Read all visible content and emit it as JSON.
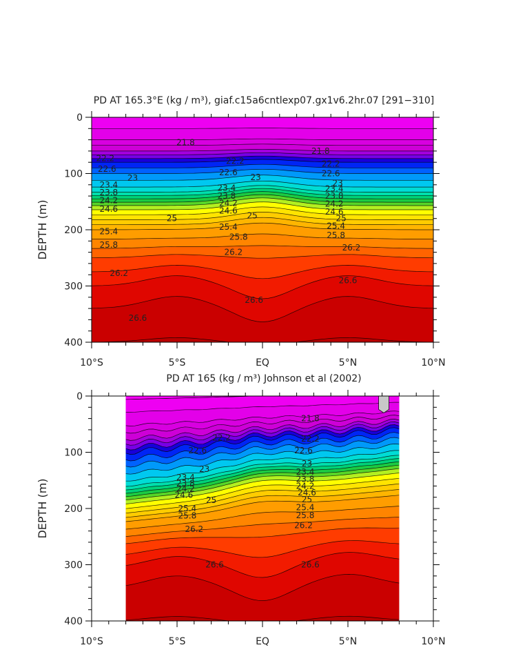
{
  "figure": {
    "background": "#ffffff"
  },
  "chart_data": [
    {
      "type": "heatmap",
      "subtype": "filled-contour",
      "title": "PD AT 165.3°E (kg / m³), giaf.c15a6cntlexp07.gx1v6.2hr.07 [291−310]",
      "xlabel": "",
      "ylabel": "DEPTH (m)",
      "xlim": [
        -10,
        10
      ],
      "ylim": [
        400,
        0
      ],
      "y_reversed": true,
      "grid": false,
      "x_ticks": [
        {
          "value": -10,
          "label": "10°S"
        },
        {
          "value": -5,
          "label": "5°S"
        },
        {
          "value": 0,
          "label": "EQ"
        },
        {
          "value": 5,
          "label": "5°N"
        },
        {
          "value": 10,
          "label": "10°N"
        }
      ],
      "y_ticks": [
        {
          "value": 0,
          "label": "0"
        },
        {
          "value": 100,
          "label": "100"
        },
        {
          "value": 200,
          "label": "200"
        },
        {
          "value": 300,
          "label": "300"
        },
        {
          "value": 400,
          "label": "400"
        }
      ],
      "data_extent": [
        -10,
        10
      ],
      "contour_interval": 0.2,
      "depth_profile": {
        "depths": [
          0,
          40,
          60,
          80,
          100,
          130,
          160,
          200,
          250,
          300,
          350,
          400
        ],
        "density": [
          21.2,
          21.6,
          22.0,
          22.6,
          23.0,
          23.5,
          24.5,
          25.4,
          26.0,
          26.4,
          26.65,
          26.8
        ]
      },
      "contour_labels": [
        {
          "x": -4.5,
          "y": 45,
          "label": "21.8"
        },
        {
          "x": 3.4,
          "y": 60,
          "label": "21.8"
        },
        {
          "x": -9.2,
          "y": 73,
          "label": "22.2"
        },
        {
          "x": -1.6,
          "y": 78,
          "label": "22.2"
        },
        {
          "x": 4.0,
          "y": 83,
          "label": "22.2"
        },
        {
          "x": -9.1,
          "y": 92,
          "label": "22.6"
        },
        {
          "x": -2.0,
          "y": 98,
          "label": "22.6"
        },
        {
          "x": 4.0,
          "y": 100,
          "label": "22.6"
        },
        {
          "x": -7.6,
          "y": 108,
          "label": "23"
        },
        {
          "x": -0.4,
          "y": 107,
          "label": "23"
        },
        {
          "x": 4.4,
          "y": 117,
          "label": "23"
        },
        {
          "x": -9.0,
          "y": 120,
          "label": "23.4"
        },
        {
          "x": -2.1,
          "y": 126,
          "label": "23.4"
        },
        {
          "x": 4.2,
          "y": 127,
          "label": "23.4"
        },
        {
          "x": -9.0,
          "y": 134,
          "label": "23.8"
        },
        {
          "x": -2.1,
          "y": 140,
          "label": "23.8"
        },
        {
          "x": 4.2,
          "y": 140,
          "label": "23.8"
        },
        {
          "x": -9.0,
          "y": 148,
          "label": "24.2"
        },
        {
          "x": -2.0,
          "y": 153,
          "label": "24.2"
        },
        {
          "x": 4.2,
          "y": 154,
          "label": "24.2"
        },
        {
          "x": -9.0,
          "y": 163,
          "label": "24.6"
        },
        {
          "x": -2.0,
          "y": 166,
          "label": "24.6"
        },
        {
          "x": 4.2,
          "y": 168,
          "label": "24.6"
        },
        {
          "x": -5.3,
          "y": 180,
          "label": "25"
        },
        {
          "x": -0.6,
          "y": 175,
          "label": "25"
        },
        {
          "x": 4.6,
          "y": 180,
          "label": "25"
        },
        {
          "x": -9.0,
          "y": 203,
          "label": "25.4"
        },
        {
          "x": -2.0,
          "y": 195,
          "label": "25.4"
        },
        {
          "x": 4.3,
          "y": 193,
          "label": "25.4"
        },
        {
          "x": -9.0,
          "y": 227,
          "label": "25.8"
        },
        {
          "x": -1.4,
          "y": 213,
          "label": "25.8"
        },
        {
          "x": 4.3,
          "y": 210,
          "label": "25.8"
        },
        {
          "x": -1.7,
          "y": 240,
          "label": "26.2"
        },
        {
          "x": 5.2,
          "y": 232,
          "label": "26.2"
        },
        {
          "x": -8.4,
          "y": 277,
          "label": "26.2"
        },
        {
          "x": -0.5,
          "y": 325,
          "label": "26.6"
        },
        {
          "x": 5.0,
          "y": 290,
          "label": "26.6"
        },
        {
          "x": -7.3,
          "y": 357,
          "label": "26.6"
        }
      ]
    },
    {
      "type": "heatmap",
      "subtype": "filled-contour",
      "title": "PD AT 165 (kg / m³) Johnson et al (2002)",
      "xlabel": "",
      "ylabel": "DEPTH (m)",
      "xlim": [
        -10,
        10
      ],
      "ylim": [
        400,
        0
      ],
      "y_reversed": true,
      "grid": false,
      "x_ticks": [
        {
          "value": -10,
          "label": "10°S"
        },
        {
          "value": -5,
          "label": "5°S"
        },
        {
          "value": 0,
          "label": "EQ"
        },
        {
          "value": 5,
          "label": "5°N"
        },
        {
          "value": 10,
          "label": "10°N"
        }
      ],
      "y_ticks": [
        {
          "value": 0,
          "label": "0"
        },
        {
          "value": 100,
          "label": "100"
        },
        {
          "value": 200,
          "label": "200"
        },
        {
          "value": 300,
          "label": "300"
        },
        {
          "value": 400,
          "label": "400"
        }
      ],
      "data_extent": [
        -8,
        8
      ],
      "contour_interval": 0.2,
      "depth_profile": {
        "depths": [
          0,
          40,
          60,
          80,
          100,
          130,
          160,
          200,
          250,
          300,
          350,
          400
        ],
        "density": [
          21.2,
          21.6,
          22.0,
          22.6,
          23.0,
          23.5,
          24.5,
          25.4,
          26.0,
          26.4,
          26.65,
          26.8
        ]
      },
      "missing_patch": {
        "x": [
          6.8,
          7.4
        ],
        "y": [
          0,
          30
        ],
        "color": "#c8c8c8"
      },
      "contour_labels": [
        {
          "x": 2.8,
          "y": 40,
          "label": "21.8"
        },
        {
          "x": -2.4,
          "y": 74,
          "label": "22.2"
        },
        {
          "x": 2.8,
          "y": 76,
          "label": "22.2"
        },
        {
          "x": -3.8,
          "y": 97,
          "label": "22.6"
        },
        {
          "x": 2.4,
          "y": 97,
          "label": "22.6"
        },
        {
          "x": -3.4,
          "y": 130,
          "label": "23"
        },
        {
          "x": 2.6,
          "y": 120,
          "label": "23"
        },
        {
          "x": -4.5,
          "y": 145,
          "label": "23.4"
        },
        {
          "x": 2.5,
          "y": 135,
          "label": "23.4"
        },
        {
          "x": -4.5,
          "y": 155,
          "label": "23.8"
        },
        {
          "x": 2.5,
          "y": 148,
          "label": "23.8"
        },
        {
          "x": -4.5,
          "y": 165,
          "label": "24.2"
        },
        {
          "x": 2.5,
          "y": 160,
          "label": "24.2"
        },
        {
          "x": -4.6,
          "y": 176,
          "label": "24.6"
        },
        {
          "x": 2.6,
          "y": 172,
          "label": "24.6"
        },
        {
          "x": -3.0,
          "y": 185,
          "label": "25"
        },
        {
          "x": 2.6,
          "y": 184,
          "label": "25"
        },
        {
          "x": -4.4,
          "y": 200,
          "label": "25.4"
        },
        {
          "x": 2.5,
          "y": 198,
          "label": "25.4"
        },
        {
          "x": -4.4,
          "y": 213,
          "label": "25.8"
        },
        {
          "x": 2.5,
          "y": 212,
          "label": "25.8"
        },
        {
          "x": -4.0,
          "y": 237,
          "label": "26.2"
        },
        {
          "x": 2.4,
          "y": 230,
          "label": "26.2"
        },
        {
          "x": -2.8,
          "y": 300,
          "label": "26.6"
        },
        {
          "x": 2.8,
          "y": 300,
          "label": "26.6"
        }
      ]
    }
  ]
}
